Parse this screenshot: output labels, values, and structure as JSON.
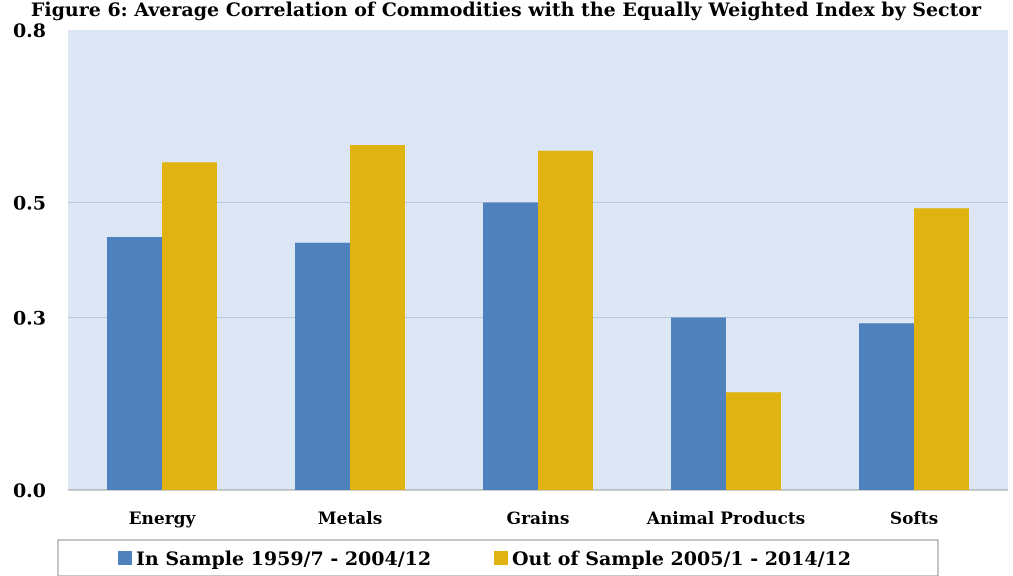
{
  "chart_data": {
    "type": "bar",
    "title": "Figure 6: Average Correlation of Commodities with the Equally Weighted Index by Sector",
    "categories": [
      "Energy",
      "Metals",
      "Grains",
      "Animal Products",
      "Softs"
    ],
    "series": [
      {
        "name": "In Sample 1959/7 - 2004/12",
        "values": [
          0.44,
          0.43,
          0.5,
          0.3,
          0.29
        ],
        "color": "#4f81bd"
      },
      {
        "name": "Out of Sample 2005/1 - 2014/12",
        "values": [
          0.57,
          0.6,
          0.59,
          0.17,
          0.49
        ],
        "color": "#e0b212"
      }
    ],
    "ylim": [
      0.0,
      0.8
    ],
    "yticks": [
      0.0,
      0.3,
      0.5,
      0.8
    ],
    "ytick_labels": [
      "0.0",
      "0.3",
      "0.5",
      "0.8"
    ],
    "grid": true,
    "legend_position": "bottom",
    "plot_background": "#dce6f5",
    "gridline_color": "#b9c7db"
  }
}
